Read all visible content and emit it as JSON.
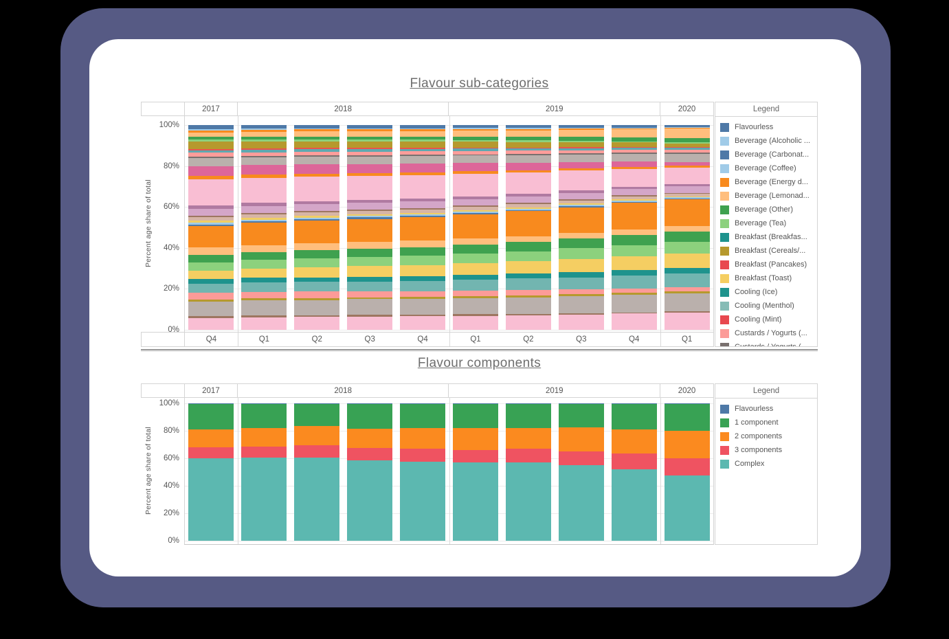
{
  "page": {
    "background_color": "#000000",
    "frame_color": "#565a84",
    "card_color": "#ffffff"
  },
  "charts": [
    {
      "id": "flavour-sub-categories",
      "title": "Flavour sub-categories",
      "ylabel": "Percent age share of total",
      "legend_title": "Legend",
      "yticks": [
        "100%",
        "80%",
        "60%",
        "40%",
        "20%",
        "0%"
      ],
      "year_groups": [
        {
          "label": "2017",
          "bars": 1
        },
        {
          "label": "2018",
          "bars": 4
        },
        {
          "label": "2019",
          "bars": 4
        },
        {
          "label": "2020",
          "bars": 1
        }
      ],
      "x_labels": [
        "Q4",
        "Q1",
        "Q2",
        "Q3",
        "Q4",
        "Q1",
        "Q2",
        "Q3",
        "Q4",
        "Q1"
      ],
      "legend": [
        {
          "label": "Flavourless",
          "color": "#4E79A7"
        },
        {
          "label": "Beverage (Alcoholic ...",
          "color": "#A0CBE8"
        },
        {
          "label": "Beverage (Carbonat...",
          "color": "#4E79A7"
        },
        {
          "label": "Beverage (Coffee)",
          "color": "#A0CBE8"
        },
        {
          "label": "Beverage (Energy d...",
          "color": "#F88A1E"
        },
        {
          "label": "Beverage (Lemonad...",
          "color": "#FFBE7D"
        },
        {
          "label": "Beverage (Other)",
          "color": "#3FA14F"
        },
        {
          "label": "Beverage (Tea)",
          "color": "#8CD17D"
        },
        {
          "label": "Breakfast (Breakfas...",
          "color": "#1E938D"
        },
        {
          "label": "Breakfast (Cereals/...",
          "color": "#B6992D"
        },
        {
          "label": "Breakfast (Pancakes)",
          "color": "#E8484F"
        },
        {
          "label": "Breakfast (Toast)",
          "color": "#F5CE62"
        },
        {
          "label": "Cooling (Ice)",
          "color": "#1E938D"
        },
        {
          "label": "Cooling (Menthol)",
          "color": "#86BCB6"
        },
        {
          "label": "Cooling (Mint)",
          "color": "#E8484F"
        },
        {
          "label": "Custards / Yogurts (...",
          "color": "#FC9B98"
        },
        {
          "label": "Custards / Yogurts (...",
          "color": "#79706E"
        }
      ],
      "chart_data": {
        "type": "bar",
        "subtype": "stacked-percent",
        "title": "Flavour sub-categories",
        "xlabel": "",
        "ylabel": "Percent age share of total",
        "ylim": [
          0,
          100
        ],
        "grid": true,
        "legend_position": "right",
        "categories": [
          "2017 Q4",
          "2018 Q1",
          "2018 Q2",
          "2018 Q3",
          "2018 Q4",
          "2019 Q1",
          "2019 Q2",
          "2019 Q3",
          "2019 Q4",
          "2020 Q1"
        ],
        "series_top_to_bottom": [
          {
            "name": "band-01",
            "color": "#4E79A7",
            "values": [
              2.0,
              1.7,
              1.6,
              1.6,
              1.5,
              1.4,
              1.3,
              1.2,
              1.1,
              1.0
            ]
          },
          {
            "name": "band-02",
            "color": "#A0CBE8",
            "values": [
              0.6,
              0.6,
              0.5,
              0.5,
              0.5,
              0.5,
              0.5,
              0.5,
              0.4,
              0.4
            ]
          },
          {
            "name": "band-03",
            "color": "#F88A1E",
            "values": [
              1.0,
              0.9,
              0.9,
              0.8,
              0.8,
              0.7,
              0.6,
              0.5,
              0.4,
              0.3
            ]
          },
          {
            "name": "band-04",
            "color": "#FFBE7D",
            "values": [
              2.2,
              2.4,
              2.5,
              2.6,
              2.6,
              2.8,
              3.0,
              3.3,
              3.7,
              4.2
            ]
          },
          {
            "name": "band-05",
            "color": "#3FA14F",
            "values": [
              1.2,
              1.2,
              1.3,
              1.3,
              1.4,
              1.5,
              1.6,
              1.7,
              1.8,
              2.0
            ]
          },
          {
            "name": "band-06",
            "color": "#8CD17D",
            "values": [
              1.2,
              1.1,
              1.0,
              1.0,
              0.9,
              0.8,
              0.8,
              0.7,
              0.6,
              0.5
            ]
          },
          {
            "name": "band-07",
            "color": "#B6992D",
            "values": [
              3.4,
              3.2,
              3.1,
              3.0,
              3.0,
              2.8,
              2.6,
              2.3,
              2.0,
              1.7
            ]
          },
          {
            "name": "band-08",
            "color": "#E8534F",
            "values": [
              0.7,
              0.7,
              0.6,
              0.6,
              0.5,
              0.5,
              0.5,
              0.4,
              0.4,
              0.3
            ]
          },
          {
            "name": "band-09",
            "color": "#5FA8B0",
            "values": [
              1.3,
              1.2,
              1.2,
              1.1,
              1.1,
              1.0,
              1.0,
              1.0,
              0.9,
              0.9
            ]
          },
          {
            "name": "band-10",
            "color": "#FF9D9A",
            "values": [
              2.0,
              1.9,
              1.8,
              1.7,
              1.6,
              1.6,
              1.5,
              1.5,
              1.4,
              1.4
            ]
          },
          {
            "name": "band-11",
            "color": "#79706E",
            "values": [
              0.7,
              0.6,
              0.6,
              0.6,
              0.5,
              0.5,
              0.5,
              0.4,
              0.4,
              0.4
            ]
          },
          {
            "name": "band-12",
            "color": "#BAB0AC",
            "values": [
              3.9,
              3.7,
              3.6,
              3.5,
              3.5,
              3.5,
              3.6,
              3.6,
              3.7,
              3.8
            ]
          },
          {
            "name": "band-13",
            "color": "#DD6699",
            "values": [
              4.8,
              4.5,
              4.4,
              4.2,
              4.2,
              3.8,
              3.4,
              2.9,
              2.3,
              1.7
            ]
          },
          {
            "name": "band-14",
            "color": "#F88A1E",
            "values": [
              1.6,
              1.5,
              1.5,
              1.4,
              1.4,
              1.3,
              1.2,
              1.0,
              0.9,
              0.8
            ]
          },
          {
            "name": "band-15",
            "color": "#F9BED3",
            "values": [
              12.8,
              12.1,
              11.7,
              11.3,
              11.0,
              10.4,
              9.7,
              9.0,
              8.2,
              7.6
            ]
          },
          {
            "name": "band-16",
            "color": "#B07AA1",
            "values": [
              1.5,
              1.5,
              1.4,
              1.4,
              1.3,
              1.3,
              1.2,
              1.2,
              1.1,
              1.1
            ]
          },
          {
            "name": "band-17",
            "color": "#D4A6C8",
            "values": [
              3.3,
              3.2,
              3.2,
              3.1,
              3.1,
              3.0,
              3.0,
              3.0,
              2.9,
              2.9
            ]
          },
          {
            "name": "band-18",
            "color": "#9D7660",
            "values": [
              0.9,
              0.9,
              0.8,
              0.8,
              0.8,
              0.7,
              0.7,
              0.6,
              0.6,
              0.5
            ]
          },
          {
            "name": "band-19",
            "color": "#D7B5A6",
            "values": [
              1.7,
              1.6,
              1.6,
              1.5,
              1.5,
              1.4,
              1.4,
              1.3,
              1.2,
              1.1
            ]
          },
          {
            "name": "band-20",
            "color": "#F1CE63",
            "values": [
              0.9,
              0.8,
              0.8,
              0.8,
              0.7,
              0.7,
              0.7,
              0.6,
              0.6,
              0.5
            ]
          },
          {
            "name": "band-21",
            "color": "#A0CBE8",
            "values": [
              0.9,
              0.8,
              0.8,
              0.7,
              0.7,
              0.7,
              0.6,
              0.6,
              0.5,
              0.5
            ]
          },
          {
            "name": "band-22",
            "color": "#4E79A7",
            "values": [
              0.8,
              0.7,
              0.7,
              0.7,
              0.6,
              0.6,
              0.5,
              0.5,
              0.4,
              0.4
            ]
          },
          {
            "name": "band-23",
            "color": "#F88A1E",
            "values": [
              10.4,
              10.6,
              10.8,
              10.9,
              11.0,
              11.2,
              11.5,
              11.8,
              12.2,
              12.2
            ]
          },
          {
            "name": "band-24",
            "color": "#FFBE7D",
            "values": [
              3.6,
              3.4,
              3.3,
              3.1,
              3.0,
              2.9,
              2.8,
              2.7,
              2.6,
              2.5
            ]
          },
          {
            "name": "band-25",
            "color": "#3FA14F",
            "values": [
              3.7,
              3.8,
              3.9,
              3.9,
              4.0,
              4.1,
              4.2,
              4.4,
              4.6,
              4.8
            ]
          },
          {
            "name": "band-26",
            "color": "#8CD17D",
            "values": [
              4.0,
              4.1,
              4.2,
              4.3,
              4.4,
              4.5,
              4.7,
              4.9,
              5.1,
              5.3
            ]
          },
          {
            "name": "band-27",
            "color": "#F5CE62",
            "values": [
              4.1,
              4.4,
              4.7,
              5.0,
              5.2,
              5.4,
              5.7,
              6.0,
              6.3,
              6.6
            ]
          },
          {
            "name": "band-28",
            "color": "#1E938D",
            "values": [
              2.3,
              2.2,
              2.2,
              2.2,
              2.2,
              2.3,
              2.3,
              2.4,
              2.4,
              2.5
            ]
          },
          {
            "name": "band-29",
            "color": "#72B5B0",
            "values": [
              4.4,
              4.5,
              4.6,
              4.7,
              4.8,
              5.0,
              5.3,
              5.6,
              5.9,
              6.2
            ]
          },
          {
            "name": "band-30",
            "color": "#FC9B98",
            "values": [
              3.5,
              3.2,
              3.0,
              2.8,
              2.7,
              2.5,
              2.4,
              2.2,
              2.1,
              2.0
            ]
          },
          {
            "name": "band-31",
            "color": "#B6992D",
            "values": [
              1.0,
              1.0,
              1.0,
              0.9,
              0.9,
              0.9,
              0.9,
              0.9,
              0.8,
              0.8
            ]
          },
          {
            "name": "band-32",
            "color": "#BAB0AC",
            "values": [
              7.0,
              7.2,
              7.3,
              7.4,
              7.5,
              7.6,
              7.7,
              7.9,
              8.1,
              8.4
            ]
          },
          {
            "name": "band-33",
            "color": "#9D7660",
            "values": [
              0.9,
              0.8,
              0.8,
              0.8,
              0.7,
              0.7,
              0.7,
              0.6,
              0.6,
              0.5
            ]
          },
          {
            "name": "band-34",
            "color": "#F9BED3",
            "values": [
              5.7,
              5.9,
              6.0,
              6.1,
              6.2,
              6.4,
              6.6,
              6.9,
              7.3,
              7.8
            ]
          }
        ]
      }
    },
    {
      "id": "flavour-components",
      "title": "Flavour components",
      "ylabel": "Percent age share of total",
      "legend_title": "Legend",
      "yticks": [
        "100%",
        "80%",
        "60%",
        "40%",
        "20%",
        "0%"
      ],
      "year_groups": [
        {
          "label": "2017",
          "bars": 1
        },
        {
          "label": "2018",
          "bars": 4
        },
        {
          "label": "2019",
          "bars": 4
        },
        {
          "label": "2020",
          "bars": 1
        }
      ],
      "x_labels": [],
      "legend": [
        {
          "label": "Flavourless",
          "color": "#4E79A7"
        },
        {
          "label": "1 component",
          "color": "#38A254"
        },
        {
          "label": "2 components",
          "color": "#FB8A1F"
        },
        {
          "label": "3 components",
          "color": "#EF5361"
        },
        {
          "label": "Complex",
          "color": "#5CB8B0"
        }
      ],
      "chart_data": {
        "type": "bar",
        "subtype": "stacked-percent",
        "title": "Flavour components",
        "xlabel": "",
        "ylabel": "Percent age share of total",
        "ylim": [
          0,
          100
        ],
        "grid": true,
        "legend_position": "right",
        "categories": [
          "2017 Q4",
          "2018 Q1",
          "2018 Q2",
          "2018 Q3",
          "2018 Q4",
          "2019 Q1",
          "2019 Q2",
          "2019 Q3",
          "2019 Q4",
          "2020 Q1"
        ],
        "series_top_to_bottom": [
          {
            "name": "Flavourless",
            "color": "#4E79A7",
            "values": [
              0.3,
              0.3,
              0.5,
              0.3,
              0.4,
              0.3,
              0.3,
              0.4,
              0.4,
              0.5
            ]
          },
          {
            "name": "1 component",
            "color": "#38A254",
            "values": [
              18.7,
              17.7,
              16.0,
              18.2,
              17.6,
              17.7,
              17.7,
              17.1,
              18.4,
              19.5
            ]
          },
          {
            "name": "2 components",
            "color": "#FB8A1F",
            "values": [
              13.0,
              13.5,
              14.0,
              14.0,
              15.0,
              16.0,
              15.0,
              17.5,
              17.9,
              20.0
            ]
          },
          {
            "name": "3 components",
            "color": "#EF5361",
            "values": [
              8.0,
              8.0,
              9.0,
              9.0,
              9.5,
              9.0,
              10.0,
              10.0,
              11.3,
              12.4
            ]
          },
          {
            "name": "Complex",
            "color": "#5CB8B0",
            "values": [
              60.0,
              60.5,
              60.5,
              58.5,
              57.5,
              57.0,
              57.0,
              55.0,
              52.0,
              47.6
            ]
          }
        ]
      }
    }
  ]
}
